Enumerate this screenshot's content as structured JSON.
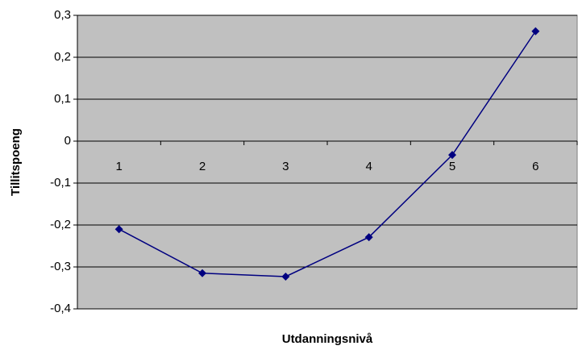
{
  "chart_data": {
    "type": "line",
    "categories": [
      "1",
      "2",
      "3",
      "4",
      "5",
      "6"
    ],
    "series": [
      {
        "name": "Tillitspoeng",
        "color": "#000080",
        "values": [
          -0.21,
          -0.315,
          -0.323,
          -0.229,
          -0.033,
          0.262
        ]
      }
    ],
    "ylim": [
      -0.4,
      0.3
    ],
    "yticks": [
      {
        "value": -0.4,
        "label": "-0,4"
      },
      {
        "value": -0.3,
        "label": "-0,3"
      },
      {
        "value": -0.2,
        "label": "-0,2"
      },
      {
        "value": -0.1,
        "label": "-0,1"
      },
      0,
      {
        "value": 0.1,
        "label": "0,1"
      },
      {
        "value": 0.2,
        "label": "0,2"
      },
      {
        "value": 0.3,
        "label": "0,3"
      }
    ],
    "ylabel": "Tillitspoeng",
    "xlabel": "Utdanningsnivå",
    "grid": true,
    "plot_background": "#c0c0c0"
  }
}
